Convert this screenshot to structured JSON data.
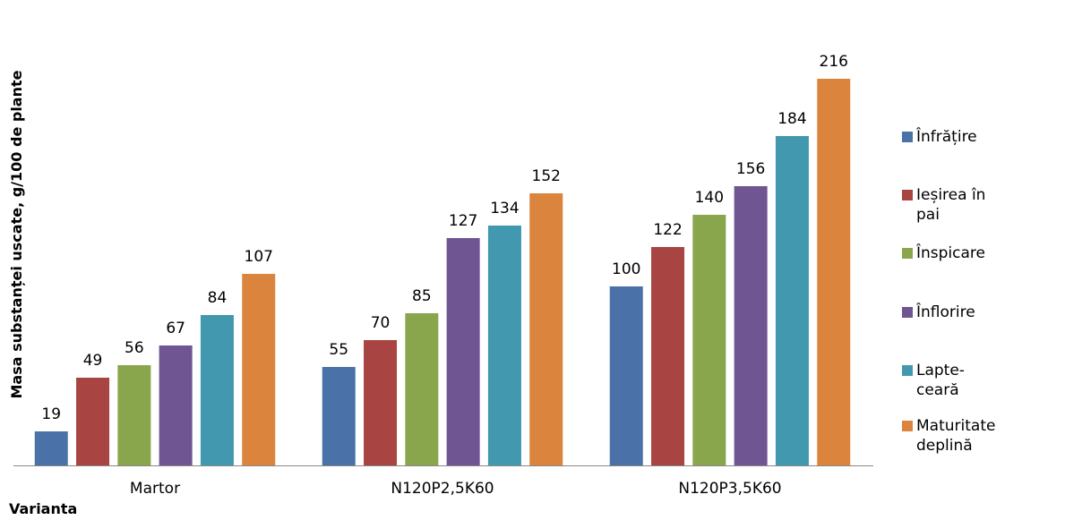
{
  "chart_data": {
    "type": "bar",
    "y_label": "Masa substanței uscate, g/100 de plante",
    "x_label": "Varianta",
    "categories": [
      "Martor",
      "N120P2,5K60",
      "N120P3,5K60"
    ],
    "series": [
      {
        "name": "Înfrățire",
        "color": "#4a72a8",
        "values": [
          19,
          55,
          100
        ]
      },
      {
        "name": "Ieșirea în pai",
        "color": "#a84442",
        "values": [
          49,
          70,
          122
        ]
      },
      {
        "name": "Înspicare",
        "color": "#8aa64c",
        "values": [
          56,
          85,
          140
        ]
      },
      {
        "name": "Înflorire",
        "color": "#6f5592",
        "values": [
          67,
          127,
          156
        ]
      },
      {
        "name": "Lapte-ceară",
        "color": "#4298af",
        "values": [
          84,
          134,
          184
        ]
      },
      {
        "name": "Maturitate deplină",
        "color": "#db843d",
        "values": [
          107,
          152,
          216
        ]
      }
    ],
    "legend": "right"
  }
}
